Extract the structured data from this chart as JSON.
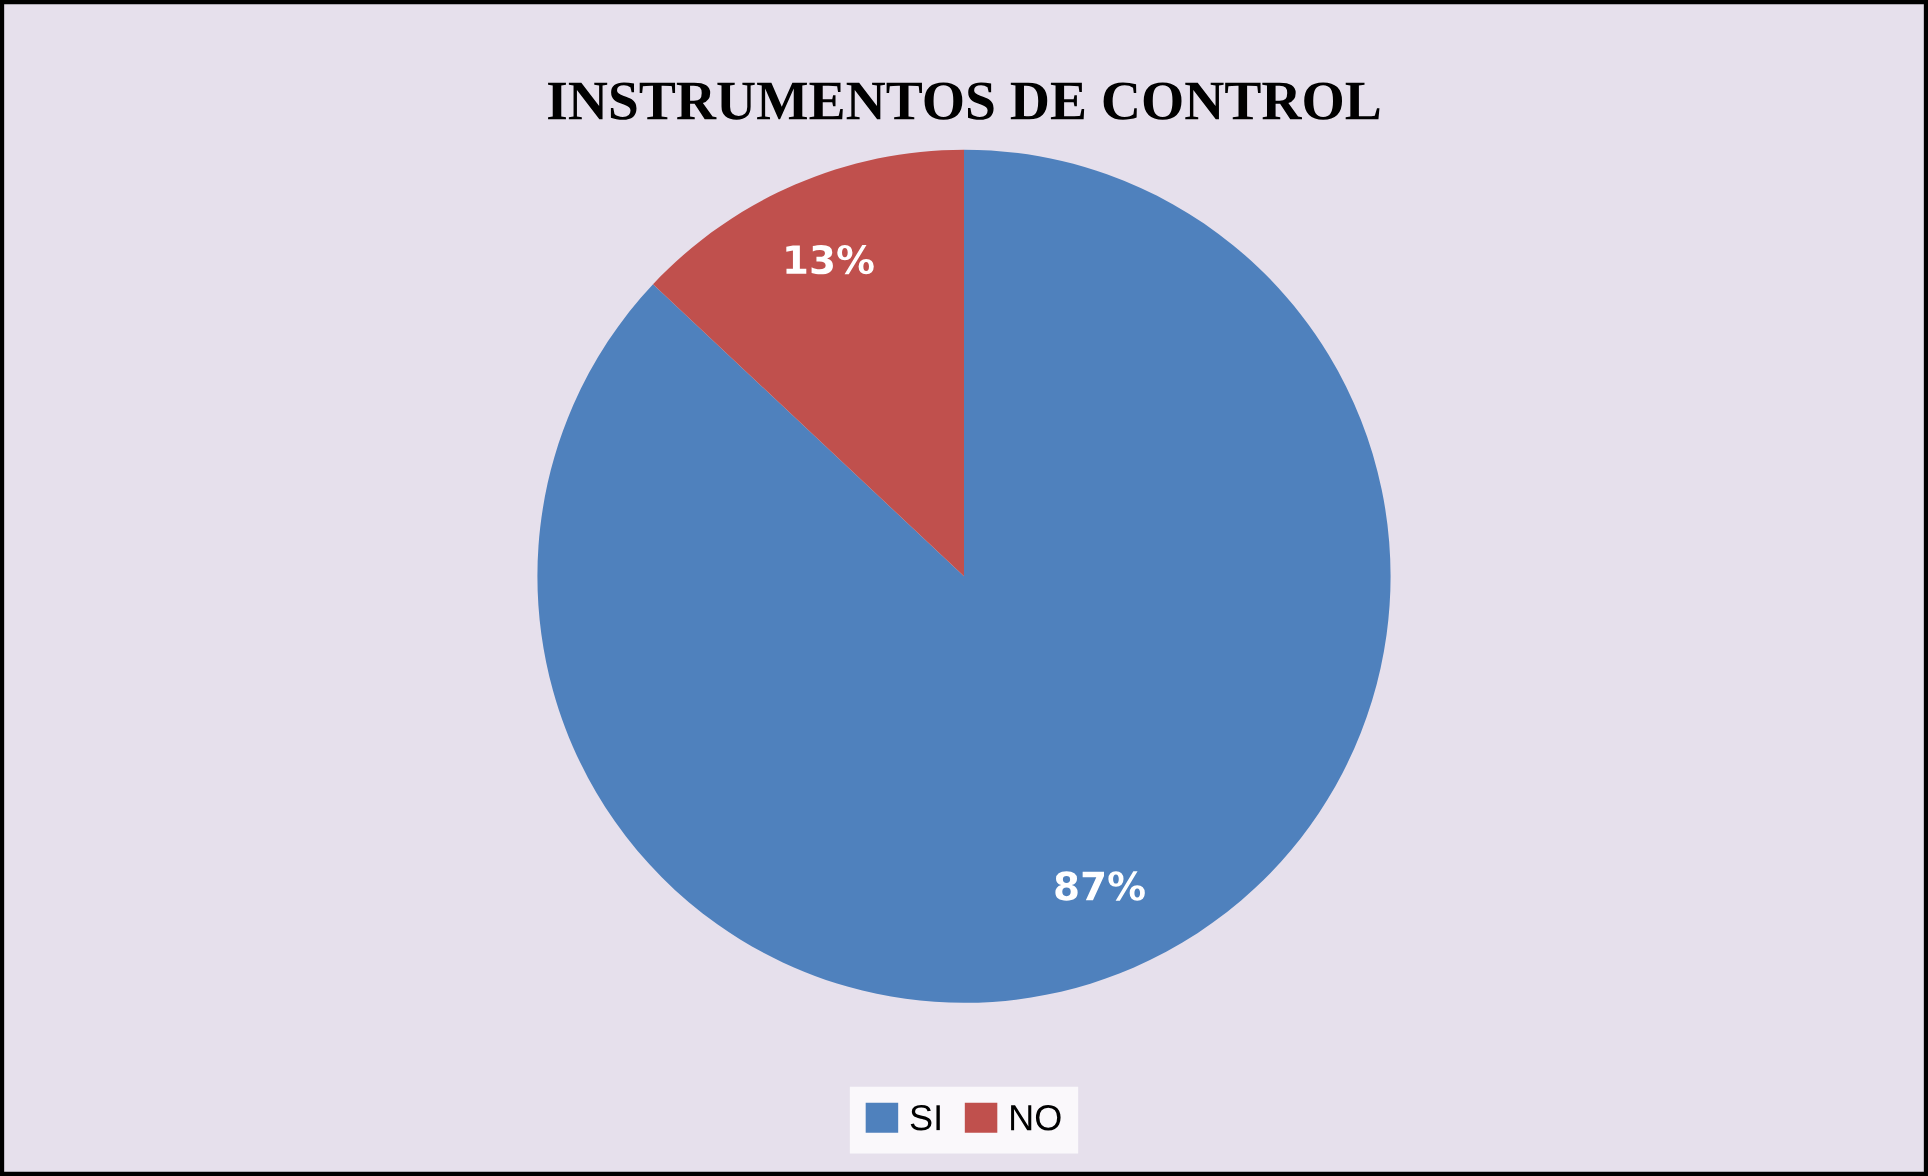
{
  "chart_data": {
    "type": "pie",
    "title": "INSTRUMENTOS DE CONTROL",
    "categories": [
      "SI",
      "NO"
    ],
    "values": [
      87,
      13
    ],
    "colors": [
      "#4f81bd",
      "#c0504d"
    ],
    "value_labels": [
      "87%",
      "13%"
    ],
    "legend": "bottom"
  }
}
